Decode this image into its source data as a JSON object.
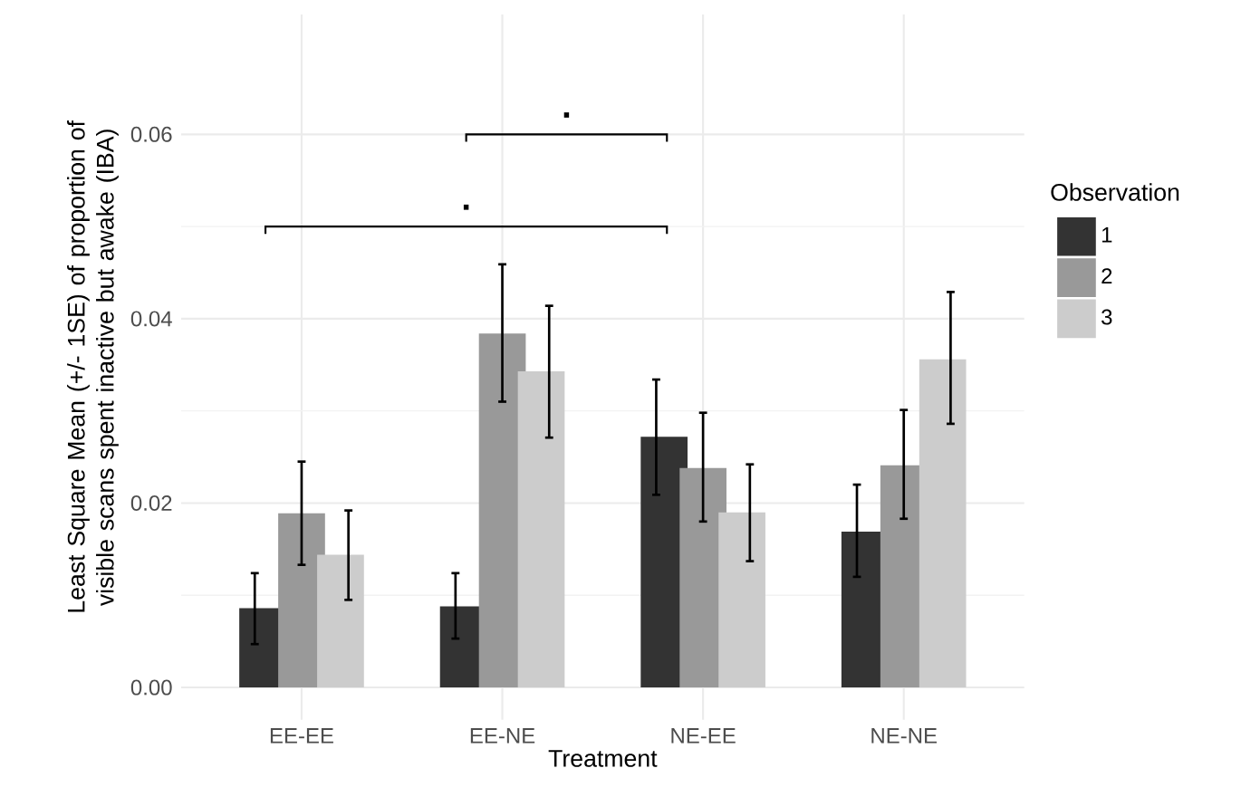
{
  "chart_data": {
    "type": "bar",
    "xlabel": "Treatment",
    "ylabel": "Least Square Mean (+/- 1SE) of proportion of visible scans spent inactive but awake (IBA)",
    "legend_title": "Observation",
    "categories": [
      "EE-EE",
      "EE-NE",
      "NE-EE",
      "NE-NE"
    ],
    "series": [
      {
        "name": "1",
        "color": "#333333",
        "values": [
          0.0086,
          0.0088,
          0.0272,
          0.0169
        ],
        "errors": [
          [
            0.0047,
            0.0124
          ],
          [
            0.0053,
            0.0124
          ],
          [
            0.0209,
            0.0334
          ],
          [
            0.012,
            0.022
          ]
        ]
      },
      {
        "name": "2",
        "color": "#999999",
        "values": [
          0.0189,
          0.0384,
          0.0238,
          0.0241
        ],
        "errors": [
          [
            0.0133,
            0.0245
          ],
          [
            0.031,
            0.0459
          ],
          [
            0.018,
            0.0298
          ],
          [
            0.0183,
            0.0301
          ]
        ]
      },
      {
        "name": "3",
        "color": "#cccccc",
        "values": [
          0.0144,
          0.0343,
          0.019,
          0.0356
        ],
        "errors": [
          [
            0.0095,
            0.0192
          ],
          [
            0.0271,
            0.0414
          ],
          [
            0.0137,
            0.0242
          ],
          [
            0.0286,
            0.0429
          ]
        ]
      }
    ],
    "ylim": [
      -0.0035,
      0.073
    ],
    "yticks": [
      {
        "value": 0,
        "label": "0.00"
      },
      {
        "value": 0.02,
        "label": "0.02"
      },
      {
        "value": 0.04,
        "label": "0.04"
      },
      {
        "value": 0.06,
        "label": "0.06"
      }
    ],
    "grid": true,
    "legend": "right",
    "annotations": [
      ".",
      "."
    ]
  }
}
